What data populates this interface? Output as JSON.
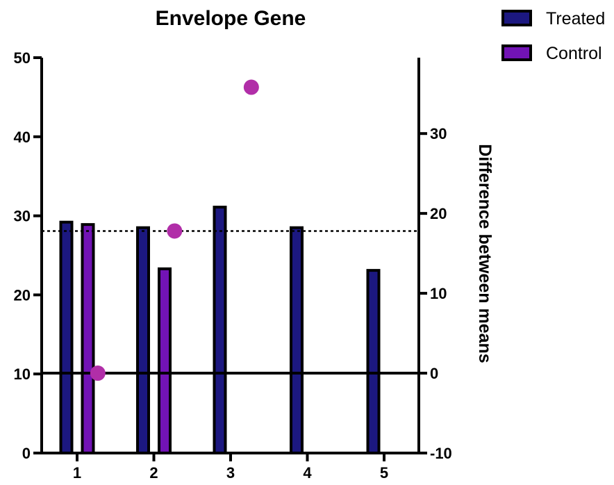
{
  "chart_data": {
    "type": "bar",
    "title": "Envelope Gene",
    "categories": [
      "1",
      "2",
      "3",
      "4",
      "5"
    ],
    "series": [
      {
        "name": "Treated",
        "values": [
          29.2,
          28.5,
          31.1,
          28.5,
          23.1
        ],
        "color": "#1c1880"
      },
      {
        "name": "Control",
        "values": [
          28.9,
          23.3,
          null,
          null,
          null
        ],
        "color": "#7213b5"
      }
    ],
    "difference_points": {
      "x": [
        1.27,
        2.27,
        3.27
      ],
      "values": [
        0,
        17.8,
        35.8
      ],
      "color": "#b12ea8"
    },
    "left_axis": {
      "ylim": [
        0,
        50
      ],
      "ticks": [
        "0",
        "10",
        "20",
        "30",
        "40",
        "50"
      ]
    },
    "right_axis": {
      "label": "Difference between means",
      "ylim": [
        -10,
        39.5
      ],
      "ticks": [
        "-10",
        "0",
        "10",
        "20",
        "30"
      ]
    },
    "reference_lines": {
      "dotted_at_difference": 17.8,
      "solid_at_difference": 0
    },
    "legend_position": "top-right"
  }
}
